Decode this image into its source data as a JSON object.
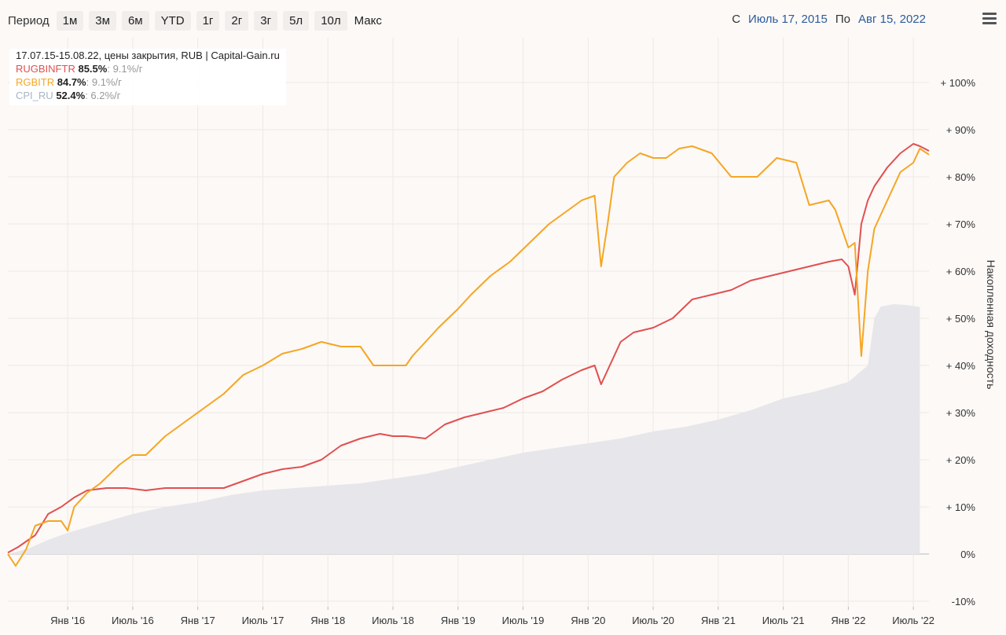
{
  "toolbar": {
    "period_label": "Период",
    "ranges": [
      "1м",
      "3м",
      "6м",
      "YTD",
      "1г",
      "2г",
      "3г",
      "5л",
      "10л",
      "Макс"
    ]
  },
  "dates": {
    "from_label": "С",
    "from_value": "Июль 17, 2015",
    "to_label": "По",
    "to_value": "Авг 15, 2022"
  },
  "legend": {
    "header": "17.07.15-15.08.22, цены закрытия, RUB | Capital-Gain.ru",
    "items": [
      {
        "name": "RUGBINFTR",
        "total": "85.5%",
        "rate": ": 9.1%/г",
        "color": "#e05050"
      },
      {
        "name": "RGBITR",
        "total": "84.7%",
        "rate": ": 9.1%/г",
        "color": "#f5a623"
      },
      {
        "name": "CPI_RU",
        "total": "52.4%",
        "rate": ": 6.2%/г",
        "color": "#a8b4c4"
      }
    ]
  },
  "chart_data": {
    "type": "line",
    "ylabel": "Накопленная доходность",
    "ylim": [
      -10,
      100
    ],
    "y_ticks": [
      -10,
      0,
      10,
      20,
      30,
      40,
      50,
      60,
      70,
      80,
      90,
      100
    ],
    "y_tick_labels": [
      "-10%",
      "0%",
      "+ 10%",
      "+ 20%",
      "+ 30%",
      "+ 40%",
      "+ 50%",
      "+ 60%",
      "+ 70%",
      "+ 80%",
      "+ 90%",
      "+ 100%"
    ],
    "xlim": [
      2015.54,
      2022.62
    ],
    "x_ticks": [
      2016.0,
      2016.5,
      2017.0,
      2017.5,
      2018.0,
      2018.5,
      2019.0,
      2019.5,
      2020.0,
      2020.5,
      2021.0,
      2021.5,
      2022.0,
      2022.5
    ],
    "x_tick_labels": [
      "Янв '16",
      "Июль '16",
      "Янв '17",
      "Июль '17",
      "Янв '18",
      "Июль '18",
      "Янв '19",
      "Июль '19",
      "Янв '20",
      "Июль '20",
      "Янв '21",
      "Июль '21",
      "Янв '22",
      "Июль '22"
    ],
    "grid": true,
    "series": [
      {
        "name": "RUGBINFTR",
        "color": "#e05050",
        "x": [
          2015.54,
          2015.62,
          2015.75,
          2015.85,
          2015.95,
          2016.05,
          2016.15,
          2016.3,
          2016.45,
          2016.6,
          2016.75,
          2016.9,
          2017.05,
          2017.2,
          2017.35,
          2017.5,
          2017.65,
          2017.8,
          2017.95,
          2018.1,
          2018.25,
          2018.4,
          2018.5,
          2018.6,
          2018.75,
          2018.9,
          2019.05,
          2019.2,
          2019.35,
          2019.5,
          2019.65,
          2019.8,
          2019.95,
          2020.05,
          2020.1,
          2020.2,
          2020.25,
          2020.35,
          2020.5,
          2020.65,
          2020.8,
          2020.95,
          2021.1,
          2021.25,
          2021.4,
          2021.55,
          2021.7,
          2021.85,
          2021.95,
          2022.0,
          2022.05,
          2022.1,
          2022.15,
          2022.2,
          2022.3,
          2022.4,
          2022.5,
          2022.55,
          2022.62
        ],
        "y": [
          0.3,
          1.5,
          4,
          8.5,
          10,
          12,
          13.5,
          14,
          14,
          13.5,
          14,
          14,
          14,
          14,
          15.5,
          17,
          18,
          18.5,
          20,
          23,
          24.5,
          25.5,
          25,
          25,
          24.5,
          27.5,
          29,
          30,
          31,
          33,
          34.5,
          37,
          39,
          40,
          36,
          42,
          45,
          47,
          48,
          50,
          54,
          55,
          56,
          58,
          59,
          60,
          61,
          62,
          62.5,
          61,
          55,
          70,
          75,
          78,
          82,
          85,
          87,
          86.5,
          85.5
        ]
      },
      {
        "name": "RGBITR",
        "color": "#f5a623",
        "x": [
          2015.54,
          2015.6,
          2015.68,
          2015.75,
          2015.85,
          2015.95,
          2016.0,
          2016.05,
          2016.15,
          2016.25,
          2016.4,
          2016.5,
          2016.6,
          2016.75,
          2016.9,
          2017.05,
          2017.2,
          2017.35,
          2017.5,
          2017.65,
          2017.8,
          2017.95,
          2018.1,
          2018.25,
          2018.35,
          2018.5,
          2018.6,
          2018.65,
          2018.75,
          2018.85,
          2019.0,
          2019.1,
          2019.25,
          2019.4,
          2019.55,
          2019.7,
          2019.85,
          2019.95,
          2020.05,
          2020.1,
          2020.15,
          2020.2,
          2020.3,
          2020.4,
          2020.5,
          2020.6,
          2020.7,
          2020.8,
          2020.95,
          2021.1,
          2021.2,
          2021.3,
          2021.45,
          2021.6,
          2021.7,
          2021.85,
          2021.9,
          2022.0,
          2022.05,
          2022.1,
          2022.15,
          2022.2,
          2022.3,
          2022.4,
          2022.5,
          2022.55,
          2022.62
        ],
        "y": [
          0,
          -2.5,
          1,
          6,
          7,
          7,
          5,
          10,
          13,
          15,
          19,
          21,
          21,
          25,
          28,
          31,
          34,
          38,
          40,
          42.5,
          43.5,
          45,
          44,
          44,
          40,
          40,
          40,
          42,
          45,
          48,
          52,
          55,
          59,
          62,
          66,
          70,
          73,
          75,
          76,
          61,
          70,
          80,
          83,
          85,
          84,
          84,
          86,
          86.5,
          85,
          80,
          80,
          80,
          84,
          83,
          74,
          75,
          73,
          65,
          66,
          42,
          60,
          69,
          75,
          81,
          83,
          86,
          84.7
        ]
      },
      {
        "name": "CPI_RU",
        "color": "#a8b4c4",
        "area": true,
        "x": [
          2015.54,
          2015.7,
          2015.85,
          2016.0,
          2016.25,
          2016.5,
          2016.75,
          2017.0,
          2017.25,
          2017.5,
          2017.75,
          2018.0,
          2018.25,
          2018.5,
          2018.75,
          2019.0,
          2019.25,
          2019.5,
          2019.75,
          2020.0,
          2020.25,
          2020.5,
          2020.75,
          2021.0,
          2021.25,
          2021.5,
          2021.75,
          2022.0,
          2022.15,
          2022.2,
          2022.25,
          2022.35,
          2022.45,
          2022.55
        ],
        "y": [
          0,
          1.2,
          3,
          4.5,
          6.5,
          8.5,
          10,
          11,
          12.5,
          13.5,
          14,
          14.5,
          15,
          16,
          17,
          18.5,
          20,
          21.5,
          22.5,
          23.5,
          24.5,
          26,
          27,
          28.5,
          30.5,
          33,
          34.5,
          36.5,
          40,
          50,
          52.5,
          53,
          52.8,
          52.4
        ]
      }
    ]
  }
}
